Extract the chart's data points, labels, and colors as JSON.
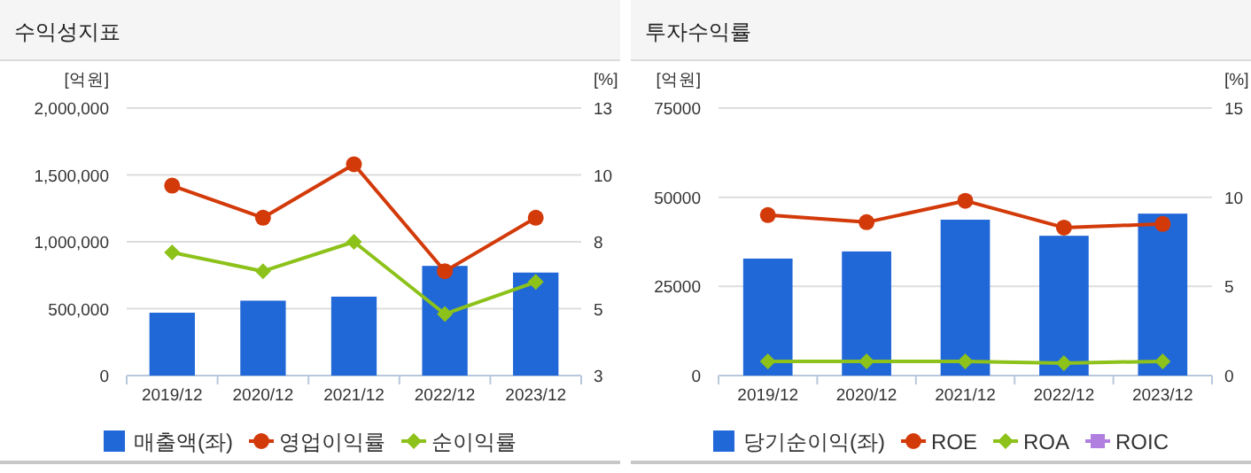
{
  "chart_data": [
    {
      "type": "bar",
      "title": "수익성지표",
      "ylabel": "[억원]",
      "y2label": "[%]",
      "categories": [
        "2019/12",
        "2020/12",
        "2021/12",
        "2022/12",
        "2023/12"
      ],
      "ylim": [
        0,
        2000000
      ],
      "yticks": [
        {
          "value": 0,
          "label": "0"
        },
        {
          "value": 500000,
          "label": "500,000"
        },
        {
          "value": 1000000,
          "label": "1,000,000"
        },
        {
          "value": 1500000,
          "label": "1,500,000"
        },
        {
          "value": 2000000,
          "label": "2,000,000"
        }
      ],
      "y2lim": [
        3,
        13
      ],
      "y2ticks": [
        3,
        {
          "value": 5.5,
          "label": "5"
        },
        8,
        {
          "value": 10.5,
          "label": "10"
        },
        13
      ],
      "grid": "y",
      "legend": "bottom",
      "series": [
        {
          "name": "매출액(좌)",
          "color": "#2067d8",
          "values": [
            470000,
            560000,
            590000,
            820000,
            770000
          ]
        },
        {
          "name": "영업이익률",
          "type": "line",
          "axis": "y2",
          "marker": "circle",
          "color": "#d33a0a",
          "values": [
            10.1,
            8.9,
            10.9,
            6.9,
            8.9
          ]
        },
        {
          "name": "순이익률",
          "type": "line",
          "axis": "y2",
          "marker": "diamond",
          "color": "#8cc21a",
          "values": [
            7.6,
            6.9,
            8.0,
            5.3,
            6.5
          ]
        }
      ]
    },
    {
      "type": "bar",
      "title": "투자수익률",
      "ylabel": "[억원]",
      "y2label": "[%]",
      "categories": [
        "2019/12",
        "2020/12",
        "2021/12",
        "2022/12",
        "2023/12"
      ],
      "ylim": [
        0,
        75000
      ],
      "yticks": [
        0,
        25000,
        50000,
        75000
      ],
      "y2lim": [
        0,
        15
      ],
      "y2ticks": [
        0,
        5,
        10,
        15
      ],
      "grid": "y",
      "legend": "bottom",
      "series": [
        {
          "name": "당기순이익(좌)",
          "color": "#2067d8",
          "values": [
            32800,
            34800,
            43700,
            39200,
            45400
          ]
        },
        {
          "name": "ROE",
          "type": "line",
          "axis": "y2",
          "marker": "circle",
          "color": "#d33a0a",
          "values": [
            9.0,
            8.6,
            9.8,
            8.3,
            8.5
          ]
        },
        {
          "name": "ROA",
          "type": "line",
          "axis": "y2",
          "marker": "diamond",
          "color": "#8cc21a",
          "values": [
            0.8,
            0.8,
            0.8,
            0.7,
            0.8
          ]
        },
        {
          "name": "ROIC",
          "type": "line",
          "axis": "y2",
          "marker": "square",
          "color": "#b07fe0",
          "values": [
            null,
            null,
            null,
            null,
            null
          ]
        }
      ]
    }
  ]
}
